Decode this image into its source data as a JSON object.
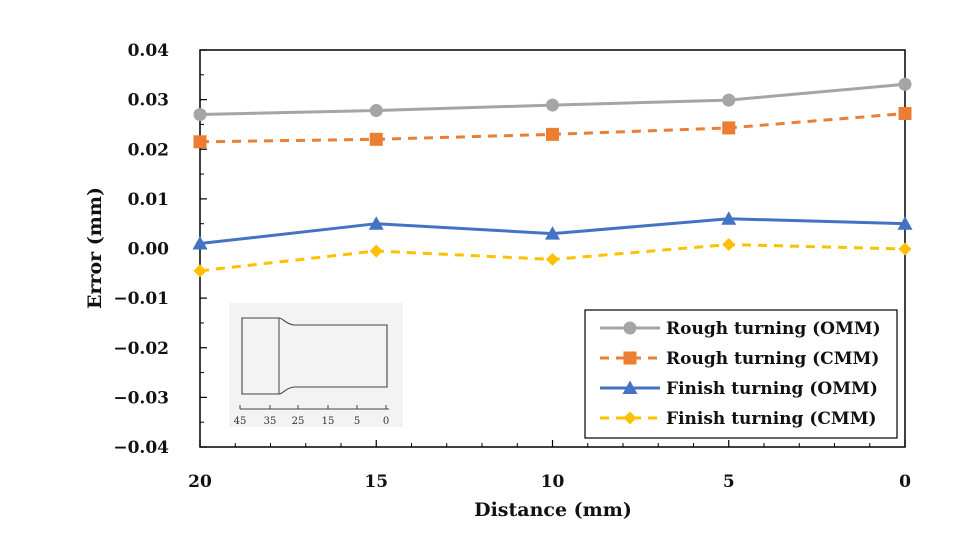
{
  "chart_data": {
    "type": "line",
    "xlabel": "Distance (mm)",
    "ylabel": "Error (mm)",
    "x_reversed": true,
    "xlim": [
      20,
      0
    ],
    "ylim": [
      -0.04,
      0.04
    ],
    "x_ticks": [
      "20",
      "15",
      "10",
      "5",
      "0"
    ],
    "y_ticks": [
      "0.04",
      "0.03",
      "0.02",
      "0.01",
      "0.00",
      "−0.01",
      "−0.02",
      "−0.03",
      "−0.04"
    ],
    "x": [
      20,
      15,
      10,
      5,
      0
    ],
    "grid": false,
    "legend_position": "bottom-right",
    "series": [
      {
        "name": "Rough turning (OMM)",
        "values": [
          0.027,
          0.0278,
          0.0289,
          0.0299,
          0.0331
        ],
        "color": "#a5a5a5",
        "marker": "circle",
        "dash": "solid"
      },
      {
        "name": "Rough turning (CMM)",
        "values": [
          0.0215,
          0.022,
          0.023,
          0.0243,
          0.0272
        ],
        "color": "#ed7d31",
        "marker": "square",
        "dash": "dashed"
      },
      {
        "name": "Finish turning (OMM)",
        "values": [
          0.001,
          0.005,
          0.003,
          0.006,
          0.005
        ],
        "color": "#4472c4",
        "marker": "triangle",
        "dash": "solid"
      },
      {
        "name": "Finish turning (CMM)",
        "values": [
          -0.0045,
          -0.0005,
          -0.0022,
          0.0008,
          -0.0001
        ],
        "color": "#ffc000",
        "marker": "diamond",
        "dash": "dashed"
      }
    ],
    "inset": {
      "description_icon": "turned-shaft-profile-icon",
      "tick_labels": [
        "45",
        "35",
        "25",
        "15",
        "5",
        "0"
      ]
    }
  }
}
